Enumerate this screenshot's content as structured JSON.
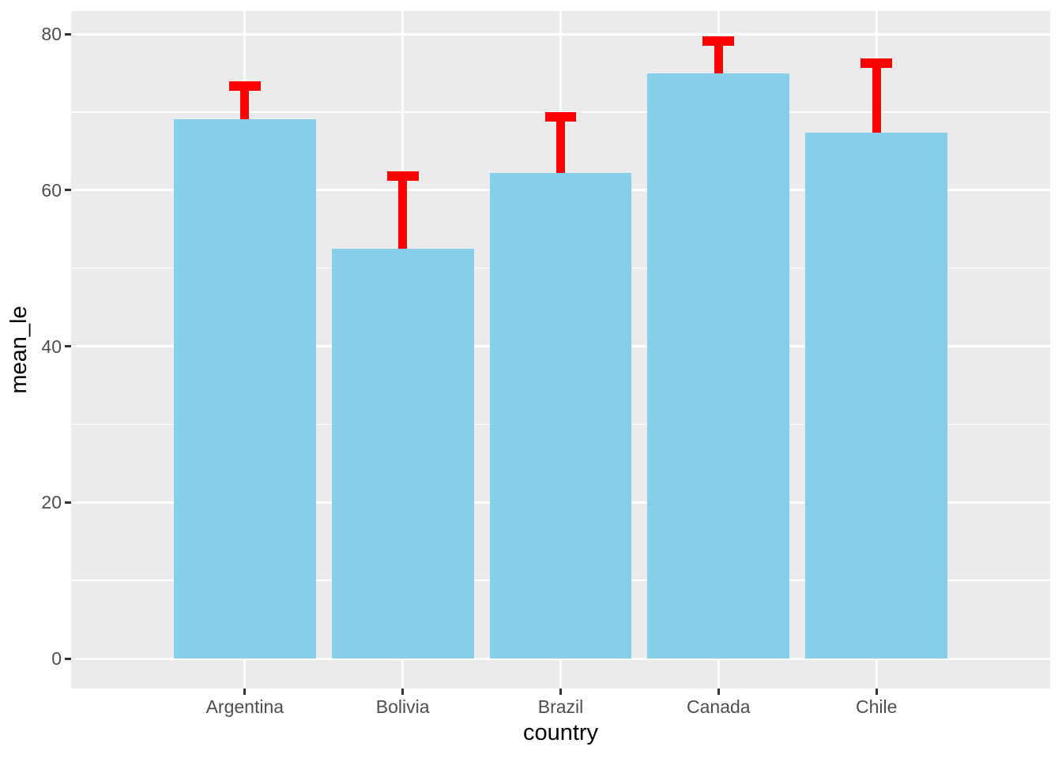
{
  "chart_data": {
    "type": "bar",
    "title": "",
    "xlabel": "country",
    "ylabel": "mean_le",
    "categories": [
      "Argentina",
      "Bolivia",
      "Brazil",
      "Canada",
      "Chile"
    ],
    "series": [
      {
        "name": "mean_le",
        "values": [
          69.1,
          52.5,
          62.2,
          74.9,
          67.4
        ],
        "error_upper": [
          73.3,
          61.8,
          69.4,
          79.1,
          76.3
        ]
      }
    ],
    "y_ticks": [
      0,
      20,
      40,
      60,
      80
    ],
    "y_tick_labels": [
      "0",
      "20",
      "40",
      "60",
      "80"
    ],
    "y_minor_ticks": [
      10,
      30,
      50,
      70
    ],
    "ylim": [
      -3.9,
      83.1
    ],
    "grid": true,
    "legend_position": "none",
    "colors": {
      "bar_fill": "#87CEEB",
      "error_bar": "#FF0000",
      "panel_background": "#EBEBEB",
      "gridline": "#FFFFFF",
      "tick_label": "#4D4D4D",
      "axis_title": "#000000",
      "tick_mark": "#333333",
      "outer_background": "#FFFFFF"
    }
  }
}
